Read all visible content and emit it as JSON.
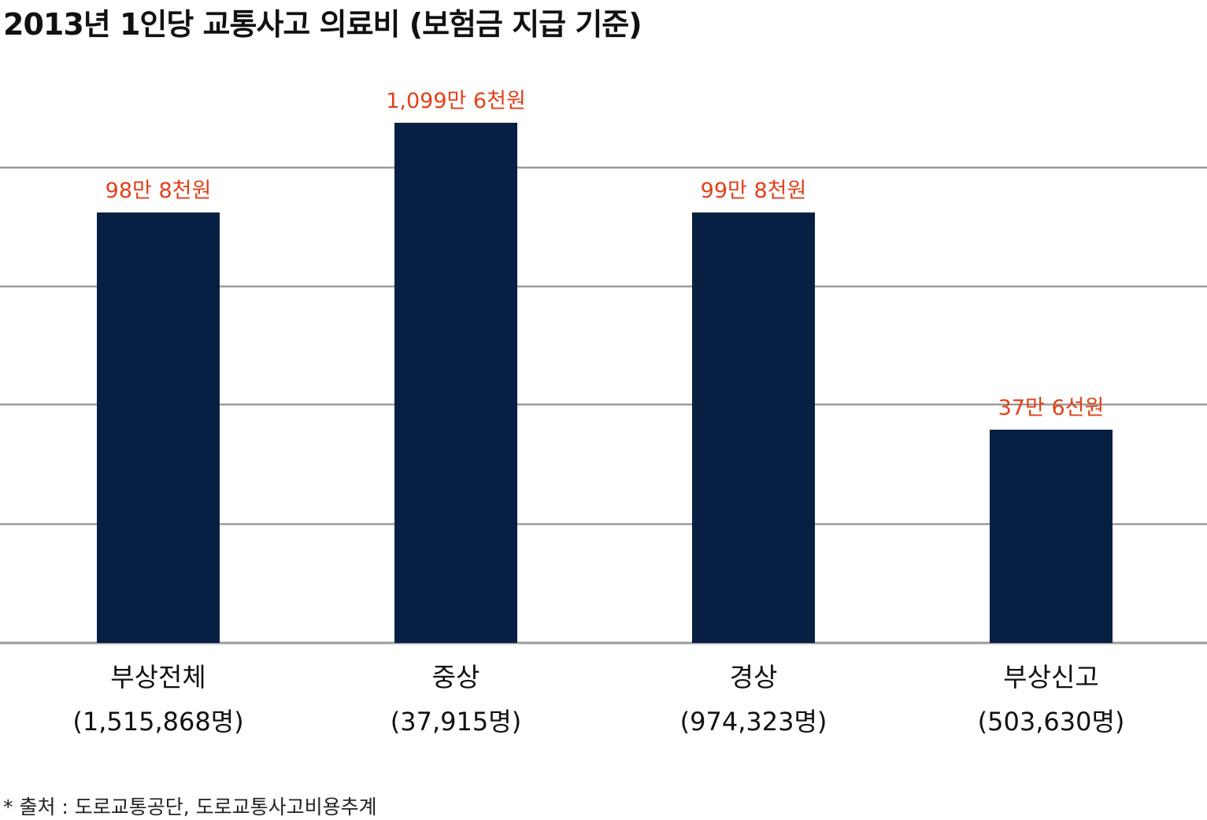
{
  "title": "2013년 1인당 교통사고 의료비 (보험금 지급 기준)",
  "source": "* 출처 : 도로교통공단, 도로교통사고비용추계",
  "colors": {
    "bar": "#071f42",
    "value_label": "#e0411b",
    "grid": "#9a9a9a",
    "axis_text": "#111111"
  },
  "chart_data": {
    "type": "bar",
    "categories": [
      "부상전체",
      "중상",
      "경상",
      "부상신고"
    ],
    "category_counts": [
      "(1,515,868명)",
      "(37,915명)",
      "(974,323명)",
      "(503,630명)"
    ],
    "values": [
      988000,
      10996000,
      998000,
      376000
    ],
    "value_labels": [
      "98만 8천원",
      "1,099만 6천원",
      "99만 8천원",
      "37만 6선원"
    ],
    "axis": "broken",
    "grid": true,
    "gridline_count": 5
  }
}
